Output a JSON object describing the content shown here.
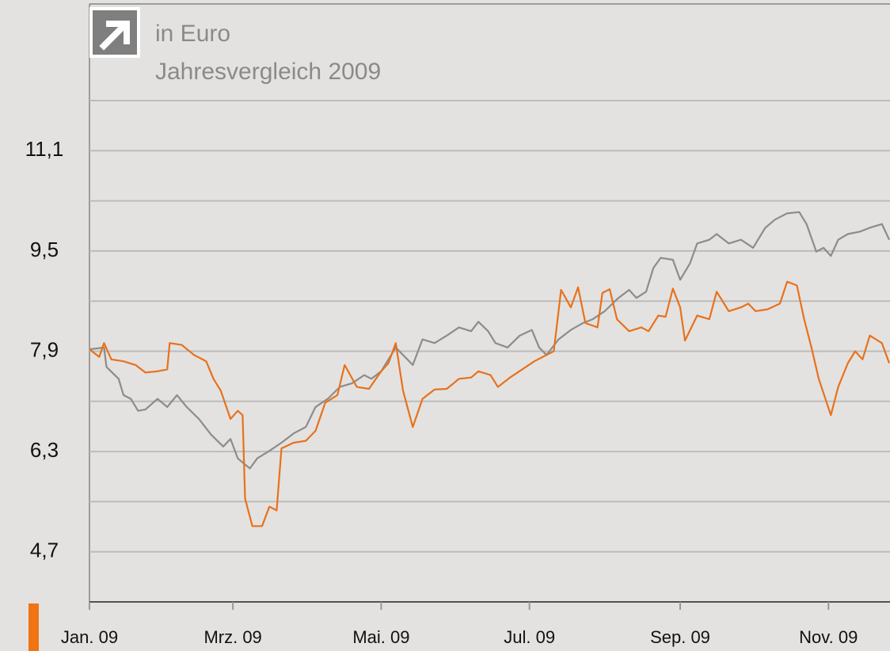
{
  "chart_data": {
    "type": "line",
    "title": "in Euro",
    "subtitle": "Jahresvergleich 2009",
    "xlim": [
      0,
      330
    ],
    "xticks": [
      {
        "value": 0,
        "label": "Jan. 09"
      },
      {
        "value": 59,
        "label": "Mrz. 09"
      },
      {
        "value": 120,
        "label": "Mai. 09"
      },
      {
        "value": 181,
        "label": "Jul. 09"
      },
      {
        "value": 243,
        "label": "Sep. 09"
      },
      {
        "value": 304,
        "label": "Nov. 09"
      }
    ],
    "ylim": [
      3.9,
      11.9
    ],
    "yticks": [
      {
        "value": 4.7,
        "label": "4,7"
      },
      {
        "value": 6.3,
        "label": "6,3"
      },
      {
        "value": 7.9,
        "label": "7,9"
      },
      {
        "value": 9.5,
        "label": "9,5"
      },
      {
        "value": 11.1,
        "label": "11,1"
      }
    ],
    "yminor": [
      5.5,
      7.1,
      8.7,
      10.3,
      11.9
    ],
    "grid": true,
    "series": [
      {
        "color": "#8c8c8c",
        "x": [
          0,
          6,
          7,
          12,
          14,
          17,
          20,
          23,
          28,
          32,
          36,
          40,
          45,
          50,
          55,
          58,
          61,
          66,
          69,
          74,
          79,
          84,
          89,
          93,
          98,
          103,
          108,
          113,
          116,
          120,
          123,
          126,
          129,
          133,
          137,
          142,
          147,
          152,
          157,
          160,
          164,
          167,
          172,
          177,
          182,
          185,
          188,
          193,
          198,
          203,
          207,
          212,
          217,
          222,
          225,
          229,
          232,
          235,
          240,
          243,
          247,
          250,
          255,
          258,
          263,
          268,
          273,
          278,
          282,
          287,
          292,
          295,
          299,
          302,
          305,
          308,
          312,
          317,
          321,
          326,
          329
        ],
        "values": [
          7.93,
          7.96,
          7.65,
          7.46,
          7.2,
          7.14,
          6.95,
          6.97,
          7.14,
          7.01,
          7.2,
          7.01,
          6.82,
          6.57,
          6.38,
          6.5,
          6.19,
          6.03,
          6.19,
          6.31,
          6.44,
          6.59,
          6.69,
          7.01,
          7.14,
          7.33,
          7.39,
          7.52,
          7.46,
          7.58,
          7.77,
          7.96,
          7.84,
          7.68,
          8.09,
          8.03,
          8.15,
          8.28,
          8.22,
          8.37,
          8.22,
          8.03,
          7.96,
          8.15,
          8.24,
          7.96,
          7.84,
          8.09,
          8.24,
          8.35,
          8.41,
          8.54,
          8.73,
          8.88,
          8.75,
          8.85,
          9.23,
          9.39,
          9.36,
          9.04,
          9.3,
          9.62,
          9.68,
          9.77,
          9.62,
          9.68,
          9.55,
          9.87,
          10.0,
          10.1,
          10.12,
          9.93,
          9.49,
          9.55,
          9.42,
          9.68,
          9.77,
          9.81,
          9.87,
          9.93,
          9.68
        ]
      },
      {
        "color": "#e8711c",
        "x": [
          0,
          4,
          6,
          9,
          14,
          19,
          23,
          28,
          32,
          33,
          38,
          43,
          48,
          51,
          54,
          58,
          61,
          63,
          64,
          67,
          71,
          74,
          77,
          79,
          84,
          89,
          93,
          97,
          102,
          105,
          110,
          115,
          120,
          123,
          126,
          129,
          133,
          137,
          142,
          147,
          152,
          157,
          160,
          165,
          168,
          173,
          178,
          183,
          188,
          191,
          194,
          198,
          201,
          204,
          209,
          211,
          214,
          217,
          222,
          227,
          230,
          234,
          237,
          240,
          243,
          245,
          250,
          255,
          258,
          263,
          268,
          271,
          274,
          279,
          284,
          287,
          291,
          294,
          297,
          300,
          305,
          308,
          312,
          315,
          318,
          321,
          326,
          329
        ],
        "values": [
          7.93,
          7.81,
          8.03,
          7.77,
          7.74,
          7.68,
          7.56,
          7.58,
          7.61,
          8.03,
          8.0,
          7.84,
          7.74,
          7.46,
          7.27,
          6.82,
          6.95,
          6.88,
          5.55,
          5.11,
          5.11,
          5.42,
          5.36,
          6.35,
          6.44,
          6.47,
          6.63,
          7.08,
          7.2,
          7.68,
          7.33,
          7.3,
          7.58,
          7.71,
          8.03,
          7.27,
          6.69,
          7.14,
          7.29,
          7.3,
          7.46,
          7.48,
          7.58,
          7.52,
          7.33,
          7.48,
          7.61,
          7.74,
          7.84,
          7.9,
          8.88,
          8.6,
          8.92,
          8.35,
          8.28,
          8.83,
          8.89,
          8.41,
          8.22,
          8.28,
          8.22,
          8.47,
          8.45,
          8.9,
          8.6,
          8.07,
          8.47,
          8.41,
          8.85,
          8.54,
          8.6,
          8.66,
          8.54,
          8.57,
          8.66,
          9.01,
          8.95,
          8.41,
          7.96,
          7.46,
          6.88,
          7.33,
          7.71,
          7.9,
          7.77,
          8.15,
          8.03,
          7.71
        ]
      }
    ]
  }
}
